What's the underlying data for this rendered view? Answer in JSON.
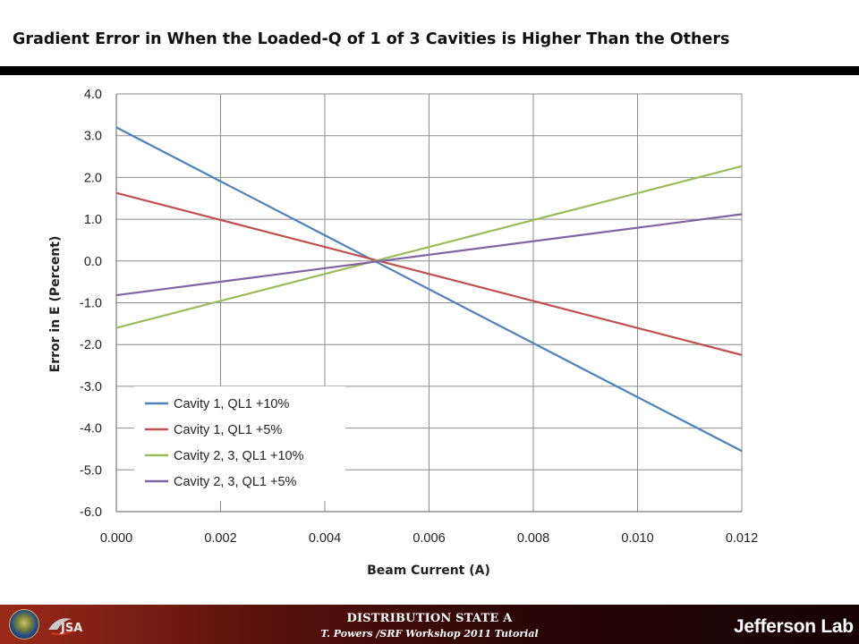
{
  "slide": {
    "title": "Gradient Error in When the Loaded-Q of 1 of 3 Cavities is Higher Than the Others"
  },
  "footer": {
    "line1": "DISTRIBUTION STATE A",
    "line2": "T. Powers /SRF Workshop 2011 Tutorial",
    "left_logo_text": "JSA",
    "right_logo_text": "Jefferson Lab"
  },
  "chart_data": {
    "type": "line",
    "title": "",
    "xlabel": "Beam Current (A)",
    "ylabel": "Error in E (Percent)",
    "xlim": [
      0,
      0.012
    ],
    "ylim": [
      -6,
      4
    ],
    "x_ticks": [
      "0.000",
      "0.002",
      "0.004",
      "0.006",
      "0.008",
      "0.010",
      "0.012"
    ],
    "y_ticks": [
      "4.0",
      "3.0",
      "2.0",
      "1.0",
      "0.0",
      "-1.0",
      "-2.0",
      "-3.0",
      "-4.0",
      "-5.0",
      "-6.0"
    ],
    "grid": true,
    "legend_position": "bottom-left",
    "series": [
      {
        "name": "Cavity 1, QL1 +10%",
        "color": "#4f81bd",
        "x": [
          0,
          0.012
        ],
        "y": [
          3.2,
          -4.55
        ]
      },
      {
        "name": "Cavity 1, QL1 +5%",
        "color": "#c0504d",
        "x": [
          0,
          0.012
        ],
        "y": [
          1.63,
          -2.25
        ]
      },
      {
        "name": "Cavity 2, 3, QL1 +10%",
        "color": "#9bbb59",
        "x": [
          0,
          0.012
        ],
        "y": [
          -1.6,
          2.27
        ]
      },
      {
        "name": "Cavity 2, 3, QL1 +5%",
        "color": "#8064a2",
        "x": [
          0,
          0.012
        ],
        "y": [
          -0.82,
          1.12
        ]
      }
    ]
  }
}
